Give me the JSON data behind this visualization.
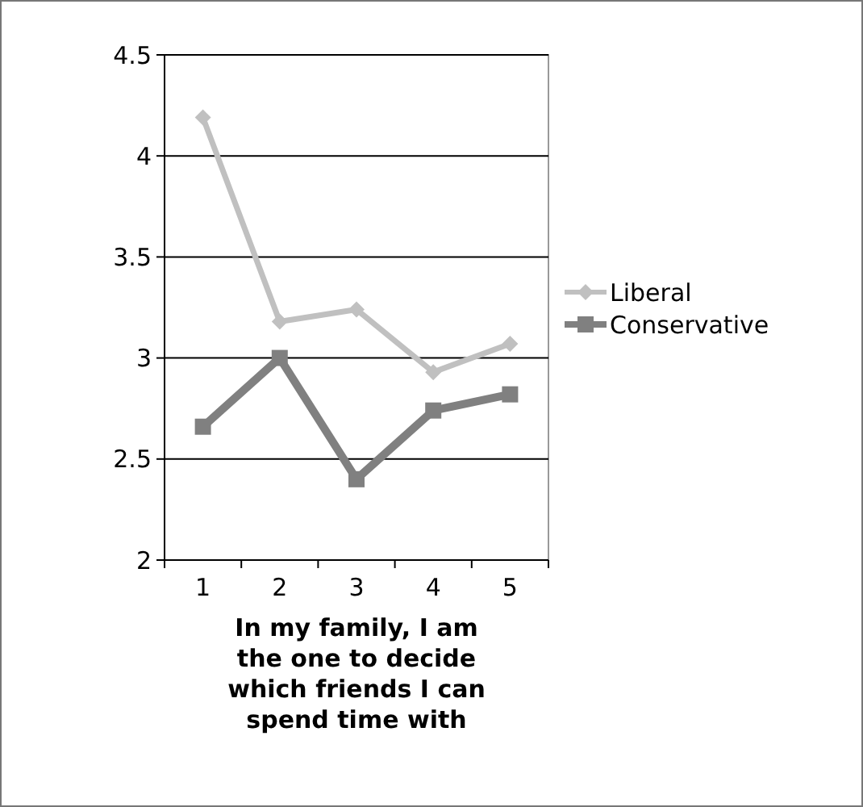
{
  "chart_data": {
    "type": "line",
    "xlabel": "In my family, I am the one to decide which friends I can spend time with",
    "categories": [
      "1",
      "2",
      "3",
      "4",
      "5"
    ],
    "series": [
      {
        "name": "Liberal",
        "color": "#c0c0c0",
        "values": [
          4.19,
          3.18,
          3.24,
          2.93,
          3.07
        ],
        "marker": "diamond"
      },
      {
        "name": "Conservative",
        "color": "#808080",
        "values": [
          2.66,
          3.0,
          2.4,
          2.74,
          2.82
        ],
        "marker": "square"
      }
    ],
    "ylim": [
      2,
      4.5
    ],
    "yticks": [
      2,
      2.5,
      3,
      3.5,
      4,
      4.5
    ],
    "grid": "y",
    "legend": "right"
  }
}
